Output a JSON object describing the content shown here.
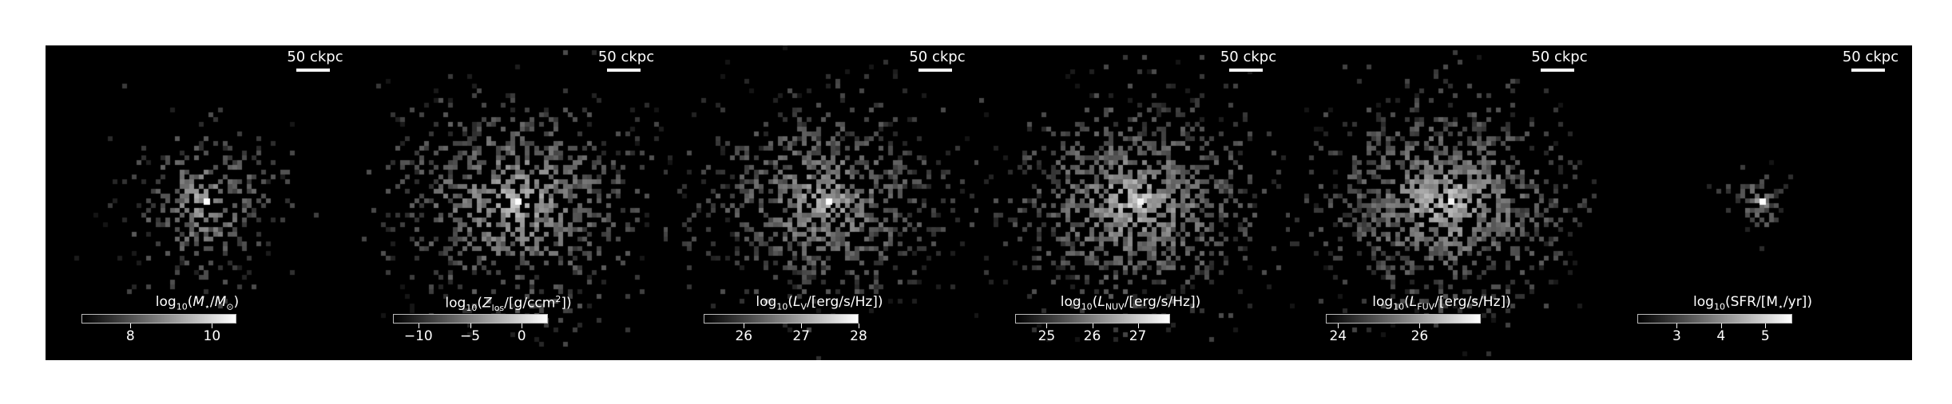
{
  "figure": {
    "panels": [
      {
        "id": "stellar-mass",
        "scalebar_label": "50 ckpc",
        "colorbar": {
          "label_parts": [
            "log",
            "10",
            "(",
            "M",
            "⋆",
            "/",
            "M",
            "⊙",
            ")"
          ],
          "range": [
            6.8,
            10.6
          ],
          "ticks": [
            {
              "value": 8,
              "label": "8"
            },
            {
              "value": 10,
              "label": "10"
            }
          ]
        },
        "map": {
          "spread": 0.13,
          "count": 300,
          "brightness": 0.55,
          "core": 1.0,
          "elong": 1.0
        }
      },
      {
        "id": "metallicity",
        "scalebar_label": "50 ckpc",
        "colorbar": {
          "label_parts": [
            "log",
            "10",
            "(",
            "Z",
            "los",
            "/[g/ccm",
            "2",
            "])"
          ],
          "range": [
            -12.5,
            2.5
          ],
          "ticks": [
            {
              "value": -10,
              "label": "−10"
            },
            {
              "value": -5,
              "label": "−5"
            },
            {
              "value": 0,
              "label": "0"
            }
          ]
        },
        "map": {
          "spread": 0.21,
          "count": 900,
          "brightness": 0.6,
          "core": 1.0,
          "elong": 0.85
        }
      },
      {
        "id": "v-band",
        "scalebar_label": "50 ckpc",
        "colorbar": {
          "label_parts": [
            "log",
            "10",
            "(",
            "L",
            "V",
            "/[erg/s/Hz])"
          ],
          "range": [
            25.3,
            28.0
          ],
          "ticks": [
            {
              "value": 26,
              "label": "26"
            },
            {
              "value": 27,
              "label": "27"
            },
            {
              "value": 28,
              "label": "28"
            }
          ]
        },
        "map": {
          "spread": 0.2,
          "count": 950,
          "brightness": 0.55,
          "core": 1.0,
          "elong": 0.8
        }
      },
      {
        "id": "nuv-band",
        "scalebar_label": "50 ckpc",
        "colorbar": {
          "label_parts": [
            "log",
            "10",
            "(",
            "L",
            "NUV",
            "/[erg/s/Hz])"
          ],
          "range": [
            24.3,
            27.7
          ],
          "ticks": [
            {
              "value": 25,
              "label": "25"
            },
            {
              "value": 26,
              "label": "26"
            },
            {
              "value": 27,
              "label": "27"
            }
          ]
        },
        "map": {
          "spread": 0.2,
          "count": 1100,
          "brightness": 0.65,
          "core": 0.95,
          "elong": 0.8
        }
      },
      {
        "id": "fuv-band",
        "scalebar_label": "50 ckpc",
        "colorbar": {
          "label_parts": [
            "log",
            "10",
            "(",
            "L",
            "FUV",
            "/[erg/s/Hz])"
          ],
          "range": [
            23.7,
            27.5
          ],
          "ticks": [
            {
              "value": 24,
              "label": "24"
            },
            {
              "value": 26,
              "label": "26"
            }
          ]
        },
        "map": {
          "spread": 0.2,
          "count": 1150,
          "brightness": 0.65,
          "core": 0.95,
          "elong": 0.8
        }
      },
      {
        "id": "sfr",
        "scalebar_label": "50 ckpc",
        "colorbar": {
          "label_parts": [
            "log",
            "10",
            "(SFR/[M",
            "⋆",
            "/yr])"
          ],
          "range": [
            2.1,
            5.6
          ],
          "ticks": [
            {
              "value": 3,
              "label": "3"
            },
            {
              "value": 4,
              "label": "4"
            },
            {
              "value": 5,
              "label": "5"
            }
          ]
        },
        "map": {
          "spread": 0.05,
          "count": 60,
          "brightness": 0.45,
          "core": 1.0,
          "elong": 1.0
        }
      }
    ]
  }
}
